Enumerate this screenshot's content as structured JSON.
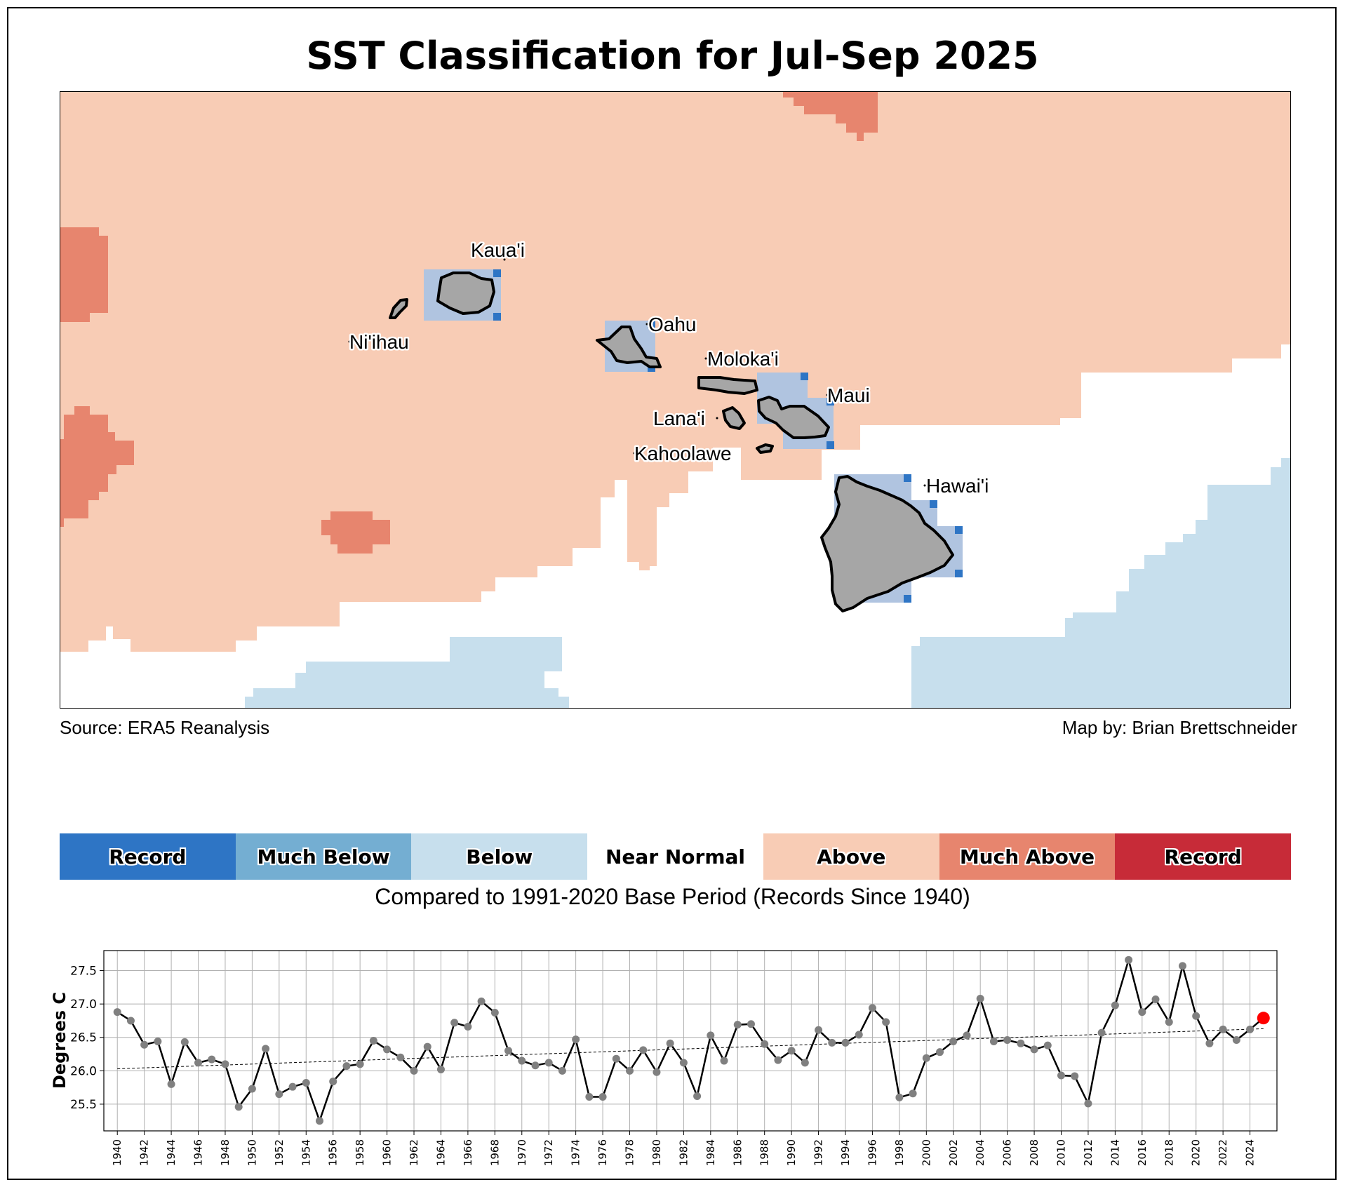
{
  "title": "SST Classification for Jul-Sep 2025",
  "footer": {
    "source": "Source: ERA5 Reanalysis",
    "credit": "Map by: Brian Brettschneider"
  },
  "map": {
    "colors": {
      "record_below": "#2e75c5",
      "much_below": "#74aed2",
      "below": "#c7dfed",
      "near_normal": "#ffffff",
      "above": "#f8ccb5",
      "much_above": "#e7856e",
      "record_above": "#c72b38",
      "land": "#a6a6a6",
      "island_box": "#b0c4e0"
    },
    "islands": [
      {
        "name": "Kaua'i"
      },
      {
        "name": "Ni'ihau"
      },
      {
        "name": "Oahu"
      },
      {
        "name": "Moloka'i"
      },
      {
        "name": "Maui"
      },
      {
        "name": "Lana'i"
      },
      {
        "name": "Kahoolawe"
      },
      {
        "name": "Hawai'i"
      }
    ]
  },
  "legend": {
    "categories": [
      {
        "label": "Record",
        "color": "#2e75c5"
      },
      {
        "label": "Much Below",
        "color": "#74aed2"
      },
      {
        "label": "Below",
        "color": "#c7dfed"
      },
      {
        "label": "Near Normal",
        "color": "#ffffff"
      },
      {
        "label": "Above",
        "color": "#f8ccb5"
      },
      {
        "label": "Much Above",
        "color": "#e7856e"
      },
      {
        "label": "Record",
        "color": "#c72b38"
      }
    ],
    "caption": "Compared to 1991-2020 Base Period   (Records Since 1940)"
  },
  "chart_data": {
    "type": "line",
    "title": "",
    "xlabel": "",
    "ylabel": "Degrees C",
    "grid": true,
    "trendline": true,
    "ylim": [
      25.1,
      27.8
    ],
    "xlim": [
      1939,
      2026
    ],
    "yticks": [
      "25.5",
      "26.0",
      "26.5",
      "27.0",
      "27.5"
    ],
    "x": [
      1940,
      1941,
      1942,
      1943,
      1944,
      1945,
      1946,
      1947,
      1948,
      1949,
      1950,
      1951,
      1952,
      1953,
      1954,
      1955,
      1956,
      1957,
      1958,
      1959,
      1960,
      1961,
      1962,
      1963,
      1964,
      1965,
      1966,
      1967,
      1968,
      1969,
      1970,
      1971,
      1972,
      1973,
      1974,
      1975,
      1976,
      1977,
      1978,
      1979,
      1980,
      1981,
      1982,
      1983,
      1984,
      1985,
      1986,
      1987,
      1988,
      1989,
      1990,
      1991,
      1992,
      1993,
      1994,
      1995,
      1996,
      1997,
      1998,
      1999,
      2000,
      2001,
      2002,
      2003,
      2004,
      2005,
      2006,
      2007,
      2008,
      2009,
      2010,
      2011,
      2012,
      2013,
      2014,
      2015,
      2016,
      2017,
      2018,
      2019,
      2020,
      2021,
      2022,
      2023,
      2024,
      2025
    ],
    "values": [
      26.88,
      26.75,
      26.39,
      26.44,
      25.8,
      26.43,
      26.12,
      26.17,
      26.1,
      25.46,
      25.73,
      26.33,
      25.65,
      25.76,
      25.82,
      25.25,
      25.84,
      26.07,
      26.1,
      26.45,
      26.32,
      26.2,
      26.0,
      26.36,
      26.02,
      26.72,
      26.66,
      27.04,
      26.87,
      26.3,
      26.15,
      26.08,
      26.12,
      26.0,
      26.47,
      25.61,
      25.61,
      26.18,
      26.0,
      26.31,
      25.98,
      26.41,
      26.12,
      25.62,
      26.53,
      26.15,
      26.69,
      26.7,
      26.4,
      26.16,
      26.3,
      26.12,
      26.61,
      26.42,
      26.42,
      26.54,
      26.94,
      26.73,
      25.6,
      25.66,
      26.19,
      26.28,
      26.44,
      26.53,
      27.08,
      26.44,
      26.46,
      26.41,
      26.32,
      26.38,
      25.93,
      25.92,
      25.51,
      26.57,
      26.98,
      27.66,
      26.88,
      27.07,
      26.73,
      27.57,
      26.82,
      26.41,
      26.62,
      26.46,
      26.62,
      26.79
    ],
    "trend_start": 26.03,
    "trend_end": 26.63,
    "highlight_year": 2025,
    "highlight_color": "#ff0000",
    "point_color": "#808080",
    "line_color": "#000000"
  }
}
